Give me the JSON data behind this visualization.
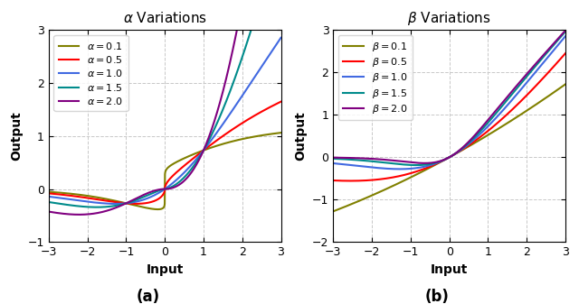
{
  "alpha_values": [
    0.1,
    0.5,
    1.0,
    1.5,
    2.0
  ],
  "beta_values": [
    0.1,
    0.5,
    1.0,
    1.5,
    2.0
  ],
  "fixed_alpha": 1.0,
  "fixed_beta": 1.0,
  "colors": [
    "#808000",
    "#ff0000",
    "#4169e1",
    "#008b8b",
    "#800080"
  ],
  "xlim": [
    -3,
    3
  ],
  "ylim_alpha": [
    -1,
    3
  ],
  "ylim_beta": [
    -2,
    3
  ],
  "xlabel": "Input",
  "ylabel": "Output",
  "xticks": [
    -3,
    -2,
    -1,
    0,
    1,
    2,
    3
  ],
  "yticks_alpha": [
    -1,
    0,
    1,
    2,
    3
  ],
  "yticks_beta": [
    -2,
    -1,
    0,
    1,
    2,
    3
  ],
  "grid_color": "#c8c8c8",
  "grid_style": "--",
  "linewidth": 1.5,
  "legend_fontsize": 8,
  "axis_labelsize": 10,
  "title_fontsize": 11,
  "tick_labelsize": 9,
  "label_a": "(a)",
  "label_b": "(b)",
  "label_fontsize": 12
}
